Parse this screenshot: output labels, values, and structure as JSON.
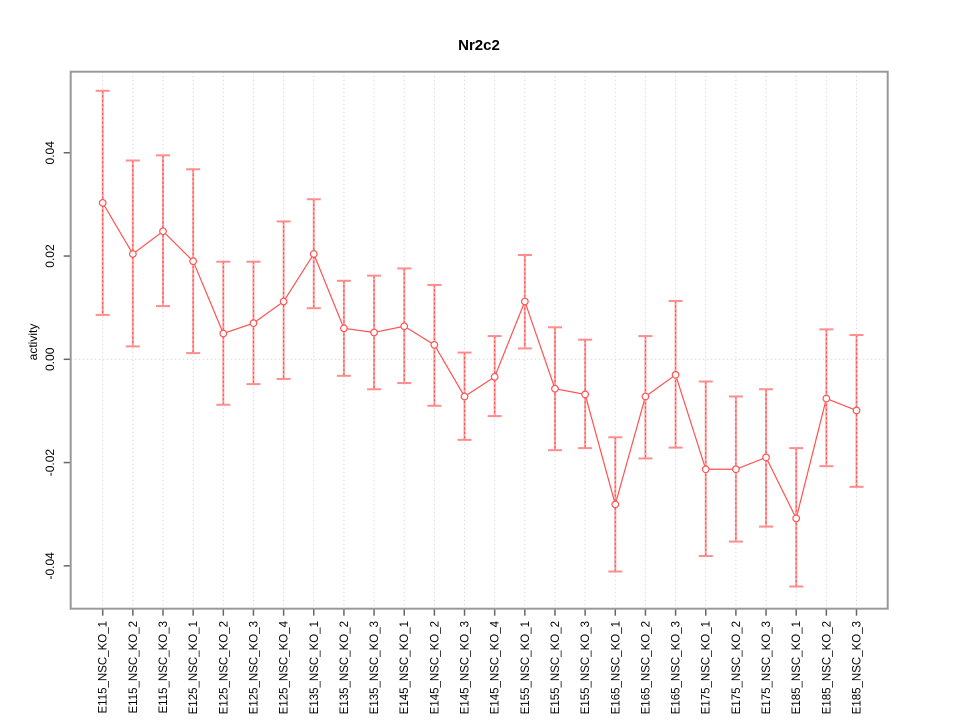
{
  "chart_data": {
    "type": "line",
    "error_bars": true,
    "title": "Nr2c2",
    "xlabel": "",
    "ylabel": "activity",
    "legend": "none",
    "grid": {
      "vertical_dotted_per_category": true,
      "horizontal_dotted_at_zero": true
    },
    "ylim": [
      -0.0483,
      0.0557
    ],
    "yticks": {
      "values": [
        -0.04,
        -0.02,
        0,
        0.02,
        0.04
      ],
      "labels": [
        "-0.04",
        "-0.02",
        "0.00",
        "0.02",
        "0.04"
      ]
    },
    "categories": [
      "E115_NSC_KO_1",
      "E115_NSC_KO_2",
      "E115_NSC_KO_3",
      "E125_NSC_KO_1",
      "E125_NSC_KO_2",
      "E125_NSC_KO_3",
      "E125_NSC_KO_4",
      "E135_NSC_KO_1",
      "E135_NSC_KO_2",
      "E135_NSC_KO_3",
      "E145_NSC_KO_1",
      "E145_NSC_KO_2",
      "E145_NSC_KO_3",
      "E145_NSC_KO_4",
      "E155_NSC_KO_1",
      "E155_NSC_KO_2",
      "E155_NSC_KO_3",
      "E165_NSC_KO_1",
      "E165_NSC_KO_2",
      "E165_NSC_KO_3",
      "E175_NSC_KO_1",
      "E175_NSC_KO_2",
      "E175_NSC_KO_3",
      "E185_NSC_KO_1",
      "E185_NSC_KO_2",
      "E185_NSC_KO_3"
    ],
    "series": [
      {
        "name": "activity",
        "values": [
          0.0303,
          0.0204,
          0.0248,
          0.019,
          0.005,
          0.007,
          0.0112,
          0.0204,
          0.006,
          0.0052,
          0.0064,
          0.0028,
          -0.0072,
          -0.0034,
          0.0112,
          -0.0057,
          -0.0068,
          -0.0281,
          -0.0072,
          -0.003,
          -0.0213,
          -0.0213,
          -0.019,
          -0.0308,
          -0.0076,
          -0.0099
        ],
        "lower": [
          0.0086,
          0.0025,
          0.0103,
          0.0012,
          -0.0088,
          -0.0048,
          -0.0038,
          0.0099,
          -0.0032,
          -0.0058,
          -0.0046,
          -0.009,
          -0.0156,
          -0.011,
          0.0021,
          -0.0176,
          -0.0172,
          -0.0411,
          -0.0192,
          -0.0171,
          -0.0381,
          -0.0353,
          -0.0324,
          -0.044,
          -0.0207,
          -0.0247
        ],
        "upper": [
          0.052,
          0.0385,
          0.0395,
          0.0368,
          0.0189,
          0.0189,
          0.0267,
          0.031,
          0.0152,
          0.0162,
          0.0176,
          0.0144,
          0.0013,
          0.0045,
          0.0202,
          0.0062,
          0.0038,
          -0.0151,
          0.0045,
          0.0113,
          -0.0043,
          -0.0072,
          -0.0058,
          -0.0172,
          0.0058,
          0.0047
        ]
      }
    ],
    "colors": {
      "point_line": "#ff5252",
      "error_bar": "#ffa0a0",
      "error_bar_cap": "#ff8d8d",
      "error_bar_dash": "#ff5454",
      "box_border": "#999999",
      "tick": "#666666",
      "grid": "#dcdcdc",
      "text": "#000000",
      "background": "#ffffff"
    }
  }
}
